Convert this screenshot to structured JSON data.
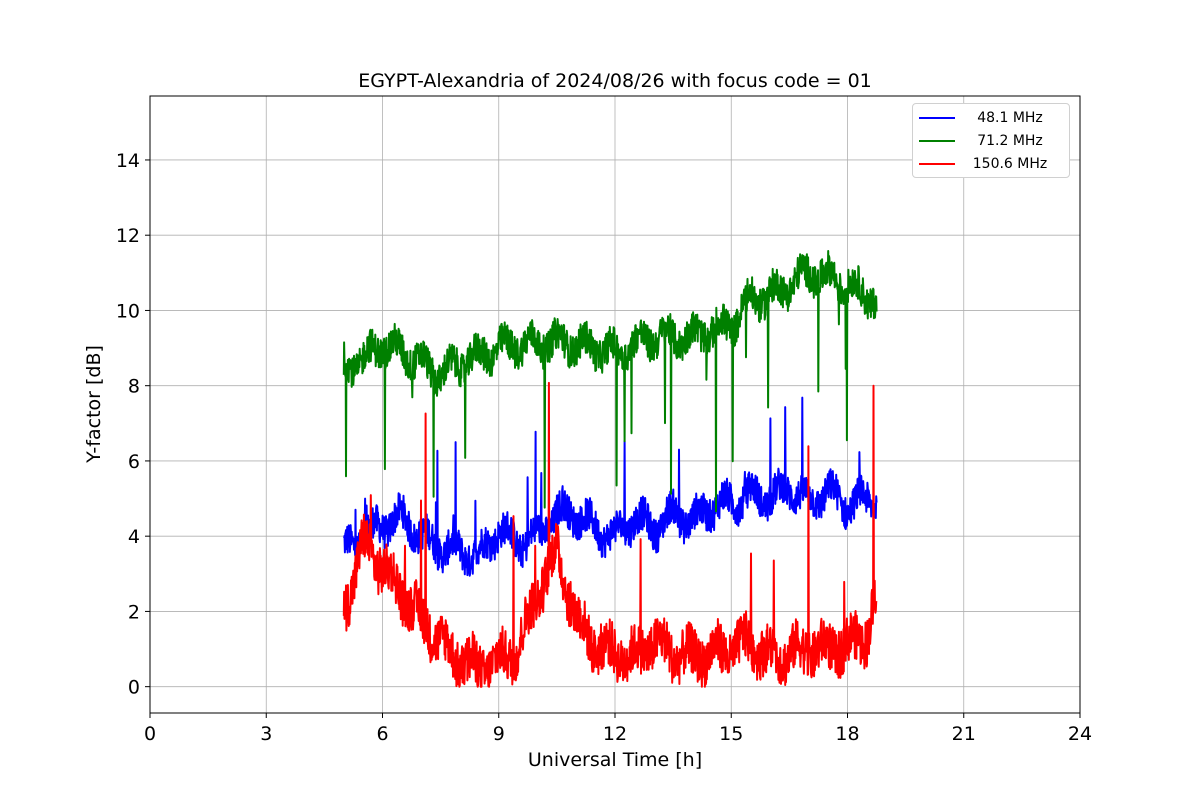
{
  "chart_data": {
    "type": "line",
    "title": "EGYPT-Alexandria of 2024/08/26 with focus code = 01",
    "xlabel": "Universal Time [h]",
    "ylabel": "Y-factor [dB]",
    "xlim": [
      0,
      24
    ],
    "ylim": [
      -0.7,
      15.7
    ],
    "xticks": [
      0,
      3,
      6,
      9,
      12,
      15,
      18,
      21,
      24
    ],
    "yticks": [
      0,
      2,
      4,
      6,
      8,
      10,
      12,
      14
    ],
    "grid": true,
    "legend_position": "top-right",
    "series": [
      {
        "name": "48.1 MHz",
        "color": "#0000ff",
        "x": [
          5.0,
          5.5,
          6.0,
          6.5,
          7.0,
          7.5,
          8.0,
          8.5,
          9.0,
          9.5,
          10.0,
          10.5,
          11.0,
          11.5,
          12.0,
          12.5,
          13.0,
          13.5,
          14.0,
          14.5,
          15.0,
          15.5,
          16.0,
          16.5,
          17.0,
          17.5,
          18.0,
          18.5,
          18.75
        ],
        "y": [
          3.6,
          4.0,
          4.3,
          4.5,
          4.0,
          3.7,
          3.6,
          3.5,
          4.2,
          3.8,
          4.0,
          4.6,
          4.6,
          4.2,
          4.0,
          4.5,
          4.2,
          4.6,
          4.4,
          4.8,
          4.9,
          5.1,
          5.0,
          5.3,
          4.9,
          5.2,
          4.8,
          5.0,
          5.0
        ]
      },
      {
        "name": "71.2 MHz",
        "color": "#008000",
        "x": [
          5.0,
          5.5,
          6.0,
          6.5,
          7.0,
          7.5,
          8.0,
          8.5,
          9.0,
          9.5,
          10.0,
          10.5,
          11.0,
          11.5,
          12.0,
          12.5,
          13.0,
          13.5,
          14.0,
          14.5,
          15.0,
          15.5,
          16.0,
          16.5,
          17.0,
          17.5,
          18.0,
          18.5,
          18.75
        ],
        "y": [
          8.5,
          8.7,
          9.1,
          8.9,
          8.6,
          8.3,
          8.6,
          8.8,
          9.0,
          9.1,
          9.1,
          9.2,
          9.1,
          9.0,
          8.9,
          9.1,
          9.3,
          9.3,
          9.3,
          9.5,
          9.6,
          10.3,
          10.4,
          10.7,
          11.0,
          10.9,
          10.7,
          10.4,
          10.3
        ]
      },
      {
        "name": "150.6 MHz",
        "color": "#ff0000",
        "x": [
          5.0,
          5.5,
          6.0,
          6.5,
          7.0,
          7.5,
          8.0,
          8.5,
          9.0,
          9.5,
          10.0,
          10.5,
          11.0,
          11.5,
          12.0,
          12.5,
          13.0,
          13.5,
          14.0,
          14.5,
          15.0,
          15.5,
          16.0,
          16.5,
          17.0,
          17.5,
          18.0,
          18.5,
          18.75
        ],
        "y": [
          2.0,
          3.8,
          3.2,
          2.5,
          1.8,
          1.2,
          0.7,
          0.5,
          0.7,
          1.0,
          2.5,
          3.6,
          1.8,
          1.1,
          0.9,
          0.8,
          1.2,
          0.9,
          0.8,
          0.9,
          1.0,
          1.2,
          0.8,
          0.9,
          1.0,
          1.0,
          1.1,
          1.4,
          2.5
        ]
      }
    ]
  }
}
